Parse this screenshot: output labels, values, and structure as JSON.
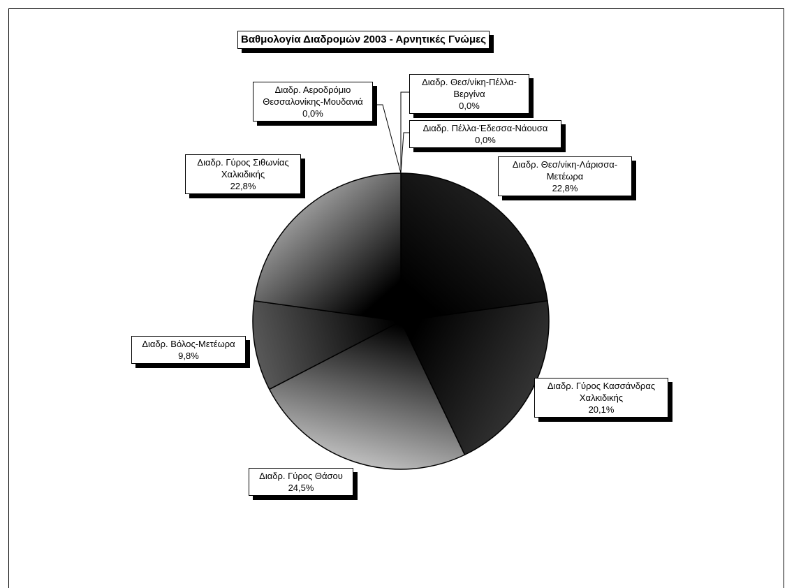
{
  "chart_data": {
    "type": "pie",
    "title": "Βαθμολογία Διαδρομών 2003 - Αρνητικές Γνώμες",
    "legend": "none",
    "slices": [
      {
        "label_lines": [
          "Διαδρ. Θεσ/νίκη-Πέλλα-",
          "Βεργίνα"
        ],
        "value": 0.0,
        "value_text": "0,0%",
        "color": "#1a1a1a"
      },
      {
        "label_lines": [
          "Διαδρ. Πέλλα-Έδεσσα-Νάουσα"
        ],
        "value": 0.0,
        "value_text": "0,0%",
        "color": "#1a1a1a"
      },
      {
        "label_lines": [
          "Διαδρ. Θεσ/νίκη-Λάρισσα-",
          "Μετέωρα"
        ],
        "value": 22.8,
        "value_text": "22,8%",
        "color": "#262626"
      },
      {
        "label_lines": [
          "Διαδρ. Γύρος Κασσάνδρας",
          "Χαλκιδικής"
        ],
        "value": 20.1,
        "value_text": "20,1%",
        "color": "#3a3a3a"
      },
      {
        "label_lines": [
          "Διαδρ. Γύρος Θάσου"
        ],
        "value": 24.5,
        "value_text": "24,5%",
        "color": "#8a8a8a"
      },
      {
        "label_lines": [
          "Διαδρ. Βόλος-Μετέωρα"
        ],
        "value": 9.8,
        "value_text": "9,8%",
        "color": "#5a5a5a"
      },
      {
        "label_lines": [
          "Διαδρ. Γύρος Σιθωνίας",
          "Χαλκιδικής"
        ],
        "value": 22.8,
        "value_text": "22,8%",
        "color": "#7a7a7a"
      },
      {
        "label_lines": [
          "Διαδρ. Αεροδρόμιο",
          "Θεσσαλονίκης-Μουδανιά"
        ],
        "value": 0.0,
        "value_text": "0,0%",
        "color": "#7a7a7a"
      }
    ]
  }
}
